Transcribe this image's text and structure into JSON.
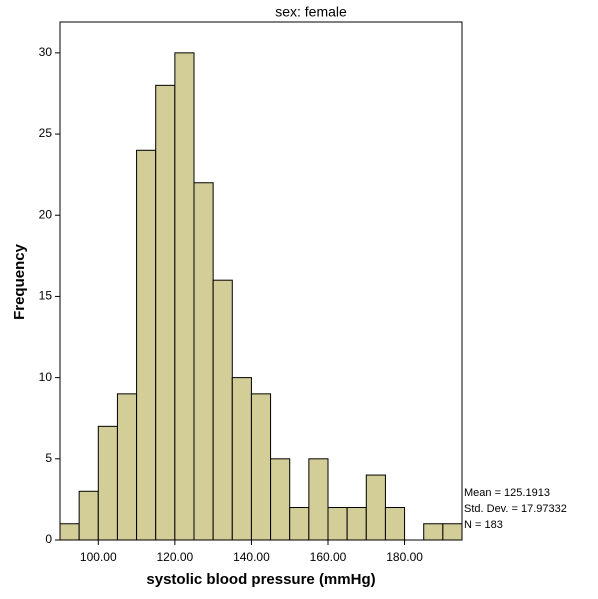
{
  "chart_data": {
    "type": "histogram",
    "title": "sex: female",
    "x_label": "systolic blood pressure (mmHg)",
    "y_label": "Frequency",
    "bins": [
      90,
      95,
      100,
      105,
      110,
      115,
      120,
      125,
      130,
      135,
      140,
      145,
      150,
      155,
      160,
      165,
      170,
      175,
      180,
      185,
      190,
      195
    ],
    "values": [
      1,
      3,
      7,
      9,
      24,
      28,
      30,
      22,
      16,
      10,
      9,
      5,
      2,
      5,
      2,
      2,
      4,
      2,
      0,
      1,
      1
    ],
    "color": "#d3cd98",
    "xlim": [
      90,
      195
    ],
    "xticks": [
      {
        "value": 100,
        "label": "100.00"
      },
      {
        "value": 120,
        "label": "120.00"
      },
      {
        "value": 140,
        "label": "140.00"
      },
      {
        "value": 160,
        "label": "160.00"
      },
      {
        "value": 180,
        "label": "180.00"
      }
    ],
    "ylim": [
      0,
      31.9
    ],
    "yticks": [
      0,
      5,
      10,
      15,
      20,
      25,
      30
    ],
    "annotations": [
      "Mean = 125.1913",
      "Std. Dev. = 17.97332",
      "N = 183"
    ]
  }
}
